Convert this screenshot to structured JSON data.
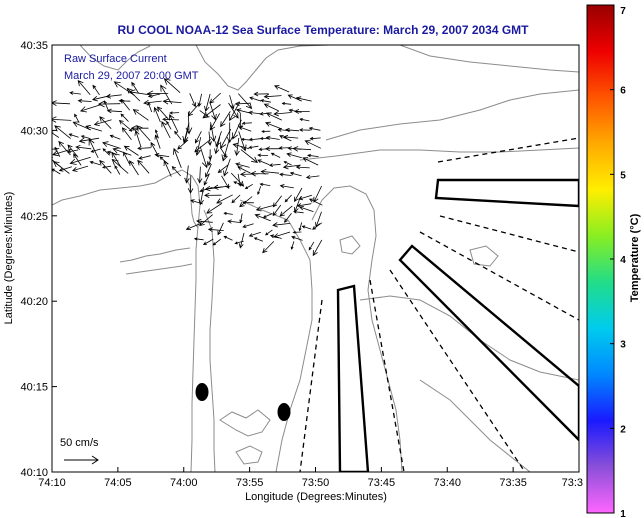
{
  "title": "RU COOL  NOAA-12  Sea Surface Temperature:  March 29, 2007 2034 GMT",
  "annotation_line1": "Raw Surface Current",
  "annotation_line2": "March 29, 2007 20:00 GMT",
  "scale_label": "50 cm/s",
  "xlabel": "Longitude (Degrees:Minutes)",
  "ylabel": "Latitude (Degrees:Minutes)",
  "colorbar_label": "Temperature (°C)",
  "x_ticks": [
    "74:10",
    "74:05",
    "74:00",
    "73:55",
    "73:50",
    "73:45",
    "73:40",
    "73:35",
    "73:3"
  ],
  "y_ticks": [
    "40:35",
    "40:30",
    "40:25",
    "40:20",
    "40:15",
    "40:10"
  ],
  "colorbar_ticks": [
    "7",
    "6",
    "5",
    "4",
    "3",
    "2",
    "1"
  ],
  "colors": {
    "title": "#1a1aa0",
    "annotation": "#1a1aa0",
    "map_lines": "#8c8c8c",
    "vectors": "#000000"
  },
  "colorbar_colors": [
    "#ff66ff",
    "#8a4fd8",
    "#1a1aff",
    "#0088ff",
    "#00ccee",
    "#22dd88",
    "#88ee22",
    "#ffee00",
    "#ffaa00",
    "#ff5500",
    "#ee0000",
    "#990000"
  ],
  "map_data": {
    "colorbar_range": [
      1,
      7
    ],
    "buoys": 2,
    "box_areas": 3,
    "dashed_lanes": 4
  }
}
